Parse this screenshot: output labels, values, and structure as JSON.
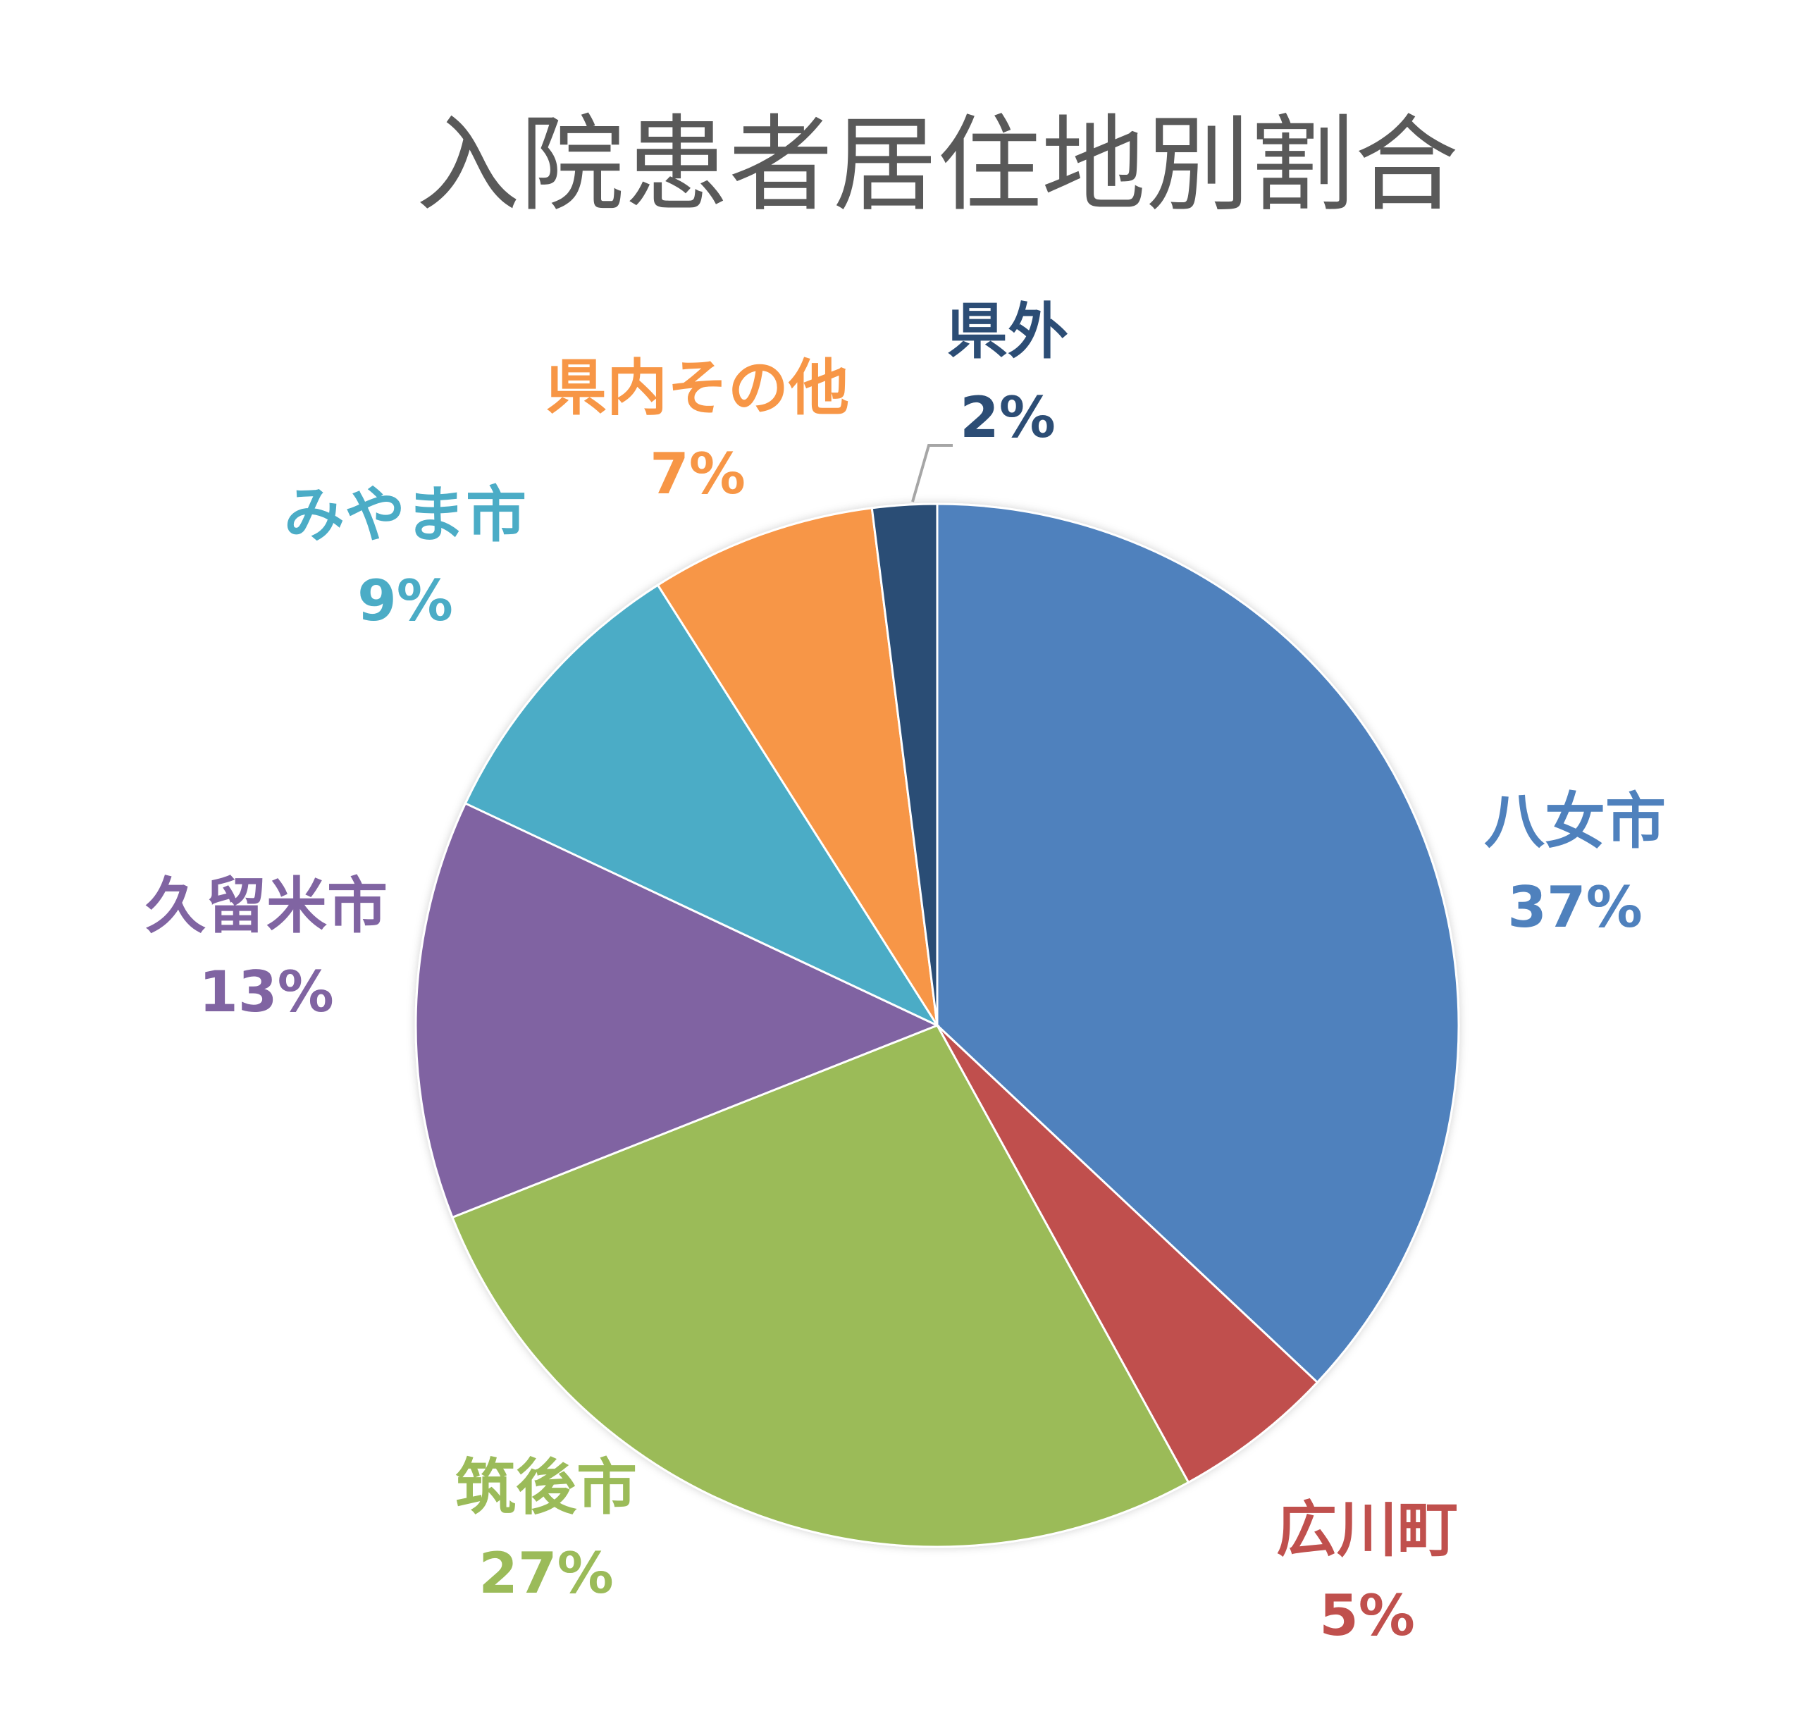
{
  "chart_data": {
    "type": "pie",
    "title": "入院患者居住地別割合",
    "start_angle": "12 o'clock, clockwise",
    "slices": [
      {
        "label": "八女市",
        "value": 37,
        "value_label": "37%",
        "color": "#4F81BD"
      },
      {
        "label": "広川町",
        "value": 5,
        "value_label": "5%",
        "color": "#C0504D"
      },
      {
        "label": "筑後市",
        "value": 27,
        "value_label": "27%",
        "color": "#9BBB59"
      },
      {
        "label": "久留米市",
        "value": 13,
        "value_label": "13%",
        "color": "#8064A2"
      },
      {
        "label": "みやま市",
        "value": 9,
        "value_label": "9%",
        "color": "#4BACC6"
      },
      {
        "label": "県内その他",
        "value": 7,
        "value_label": "7%",
        "color": "#F79646"
      },
      {
        "label": "県外",
        "value": 2,
        "value_label": "2%",
        "color": "#2C4D75"
      }
    ],
    "leader_line_color": "#A6A6A6",
    "title_color": "#595959"
  }
}
